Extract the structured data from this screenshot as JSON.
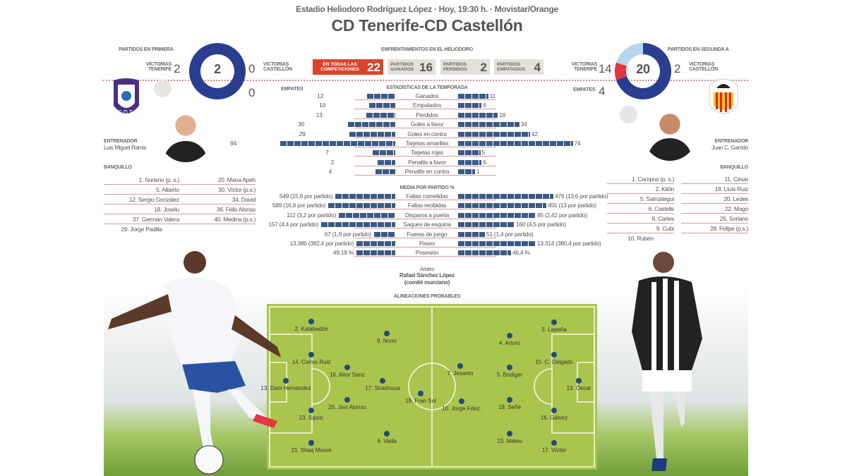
{
  "header": {
    "subtitle": "Estadio Heliodoro Rodríguez López · Hoy, 19:30 h. · Movistar/Orange",
    "title": "CD Tenerife-CD Castellón"
  },
  "primera": {
    "title": "PARTIDOS EN PRIMERA",
    "total": "2",
    "wins_label": "VICTORIAS TENERIFE",
    "wins": "2",
    "losses_label": "VICTORIAS CASTELLÓN",
    "losses": "0",
    "draws_label": "EMPATES",
    "draws": "0",
    "segments": [
      2,
      0,
      0
    ]
  },
  "segunda": {
    "title": "PARTIDOS EN SEGUNDA A",
    "total": "20",
    "wins_label": "VICTORIAS TENERIFE",
    "wins": "14",
    "losses_label": "VICTORIAS CASTELLÓN",
    "losses": "2",
    "draws_label": "EMPATES",
    "draws": "4",
    "segments": [
      14,
      2,
      4
    ]
  },
  "colors": {
    "tenerife": "#2b3d8f",
    "castellon": "#e0383e",
    "draws": "#b7d6ee",
    "accent": "#d9452f",
    "bars": "#3a5a86"
  },
  "heliodoro": {
    "title": "ENFRENTAMIENTOS EN EL HELIODORO",
    "all_label": "EN TODAS LAS COMPETICIONES",
    "all": "22",
    "won_label": "PARTIDOS GANADOS",
    "won": "16",
    "lost_label": "PARTIDOS PERDIDOS",
    "lost": "2",
    "drawn_label": "PARTIDOS EMPATADOS",
    "drawn": "4"
  },
  "season_stats": {
    "title": "ESTADÍSTICAS DE LA TEMPORADA",
    "rows": [
      {
        "label": "Ganados",
        "home": 12,
        "away": 11
      },
      {
        "label": "Empatados",
        "home": 10,
        "away": 6
      },
      {
        "label": "Perdidos",
        "home": 13,
        "away": 18
      },
      {
        "label": "Goles a favor",
        "home": 30,
        "away": 34
      },
      {
        "label": "Goles en contra",
        "home": 29,
        "away": 42
      },
      {
        "label": "Tarjetas amarillas",
        "home": 94,
        "away": 74
      },
      {
        "label": "Tarjetas rojas",
        "home": 7,
        "away": 5
      },
      {
        "label": "Penaltis a favor",
        "home": 2,
        "away": 6
      },
      {
        "label": "Penaltis en contra",
        "home": 4,
        "away": 1
      }
    ]
  },
  "avg_stats": {
    "title": "MEDIA POR PARTIDO %",
    "rows": [
      {
        "label": "Faltas cometidas",
        "home": "549 (15,6 por partido)",
        "away": "476 (13,6 por partido)",
        "hv": 15.6,
        "av": 13.6
      },
      {
        "label": "Faltas recibidas",
        "home": "589 (16,8 por partido)",
        "away": "455 (13 por partido)",
        "hv": 16.8,
        "av": 13
      },
      {
        "label": "Disparos a puerta",
        "home": "112 (3,2 por partido)",
        "away": "85 (2,42 por partido)",
        "hv": 3.2,
        "av": 2.42
      },
      {
        "label": "Saques de esquina",
        "home": "157 (4,4 por partido)",
        "away": "160 (4,5 por partido)",
        "hv": 4.4,
        "av": 4.5
      },
      {
        "label": "Fueras de juego",
        "home": "67 (1,9 por partido)",
        "away": "51 (1,4 por partido)",
        "hv": 1.9,
        "av": 1.4
      },
      {
        "label": "Pases",
        "home": "13.386 (382,4 por partido)",
        "away": "13.314 (380,4 por partido)",
        "hv": 382.4,
        "av": 380.4
      },
      {
        "label": "Posesión",
        "home": "49,19 %",
        "away": "46,4 %",
        "hv": 49.19,
        "av": 46.4
      }
    ]
  },
  "referee": {
    "label": "Árbitro",
    "name": "Rafael Sánchez López",
    "committee": "(comité murciano)"
  },
  "tenerife": {
    "coach_label": "ENTRENADOR",
    "coach": "Luis Miguel Ramis",
    "bench_label": "BANQUILLO",
    "bench": [
      "1. Soriano (p. s.)",
      "20. Mana Apeh",
      "5. Alberto",
      "30. Víctor (p.s.)",
      "12. Sergio González",
      "34. David",
      "18. Joselu",
      "36. Félix Alonso",
      "37. Germán Valera",
      "40. Medina (p.s.)",
      "29. Jorge Padilla"
    ],
    "lineup": [
      "2. Kalabadze",
      "9. Nono",
      "14. Carlos Ruiz",
      "16. Aitor Sanz",
      "13. Dani Hernández",
      "17. Shashoua",
      "19. Fran Sol",
      "26. Javi Alonso",
      "23. Sipcic",
      "6. Vada",
      "21. Shaq Moore"
    ]
  },
  "castellon": {
    "coach_label": "ENTRENADOR",
    "coach": "Juan C. Garrido",
    "bench_label": "BANQUILLO",
    "bench": [
      "1. Campos (p. s.)",
      "11. César",
      "2. Kitón",
      "18. Lluís Ruiz",
      "5. Satrústegui",
      "20. Ledes",
      "6. Castells",
      "22. Mago",
      "8. Carles",
      "25. Sorlano",
      "9. Cubí",
      "28. Felipe (p.s.)",
      "10. Rubén"
    ],
    "lineup": [
      "3. Lapeña",
      "4. Arturo",
      "15. C. Delgado",
      "7. Jesanto",
      "5. Bodiger",
      "13. Óscar",
      "10. Jorge Fdez.",
      "19. Señé",
      "16. Gálvez",
      "23. Mateu",
      "17. Víctor"
    ]
  },
  "lineups_title": "ALINEACIONES PROBABLES"
}
